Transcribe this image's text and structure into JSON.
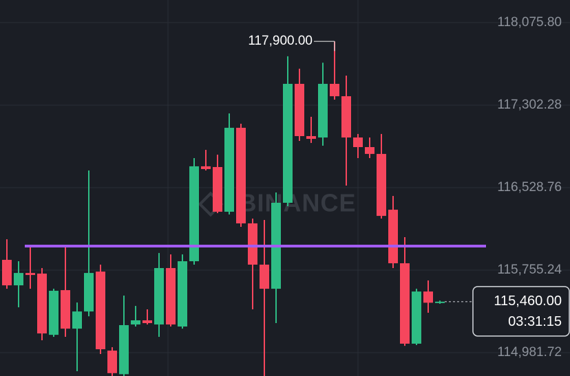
{
  "chart_data": {
    "type": "candlestick",
    "watermark": "BINANCE",
    "up_color": "#2ebd85",
    "down_color": "#f6465d",
    "ylim": [
      114763,
      118288
    ],
    "yticks": [
      {
        "value": 118075.8,
        "label": "118,075.80"
      },
      {
        "value": 117302.28,
        "label": "117,302.28"
      },
      {
        "value": 116528.76,
        "label": "116,528.76"
      },
      {
        "value": 115755.24,
        "label": "115,755.24"
      },
      {
        "value": 114981.72,
        "label": "114,981.72"
      }
    ],
    "grid": true,
    "open": [
      115852,
      115613,
      115729,
      115723,
      115149,
      115568,
      115207,
      115368,
      115742,
      115001,
      114780,
      115246,
      115285,
      115246,
      115775,
      115227,
      115839,
      116729,
      116722,
      116303,
      117090,
      116194,
      115807,
      115581,
      116387,
      117502,
      117012,
      116999,
      117502,
      117386,
      116999,
      116909,
      116845,
      116322,
      115820,
      115066,
      115555,
      115450
    ],
    "high": [
      116045,
      115839,
      115968,
      115775,
      115581,
      115981,
      115452,
      116690,
      115807,
      115033,
      115517,
      115420,
      115388,
      115916,
      115903,
      115903,
      116806,
      116883,
      116838,
      117225,
      117128,
      116239,
      116226,
      116484,
      117760,
      117644,
      117193,
      117700,
      117900,
      117579,
      117032,
      116999,
      117032,
      116451,
      116065,
      115581,
      115659,
      115470
    ],
    "low": [
      115581,
      115407,
      115581,
      115098,
      115130,
      115130,
      114808,
      115323,
      114969,
      114720,
      114720,
      115227,
      115246,
      115130,
      115227,
      115207,
      115807,
      116690,
      116290,
      116277,
      116161,
      115388,
      114720,
      115259,
      116355,
      116967,
      116948,
      116922,
      117354,
      116548,
      116806,
      116806,
      116239,
      115775,
      115046,
      115053,
      115356,
      115440
    ],
    "close": [
      115613,
      115729,
      115710,
      115162,
      115562,
      115207,
      115368,
      115729,
      115014,
      114790,
      115240,
      115285,
      115259,
      115775,
      115246,
      115839,
      116729,
      116703,
      116303,
      117090,
      116194,
      115807,
      115581,
      116387,
      117502,
      117012,
      116986,
      117502,
      117386,
      116999,
      116909,
      116845,
      116264,
      115820,
      115066,
      115555,
      115450,
      115460
    ],
    "high_marker": {
      "value": 117900,
      "label": "117,900.00"
    },
    "horizontal_line": {
      "value": 115981,
      "color": "#a35cf2"
    },
    "current_price": {
      "value": 115460,
      "label": "115,460.00"
    },
    "countdown": "03:31:15"
  }
}
